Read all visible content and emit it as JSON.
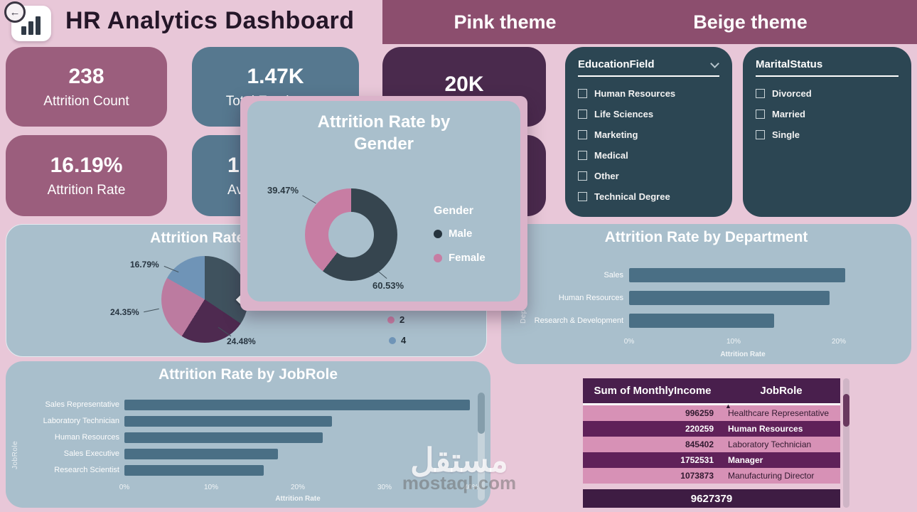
{
  "palette": {
    "page_bg": "#e8c7d8",
    "theme_strip": "#8c4e6e",
    "kpi_mauve": "#9b5e7d",
    "kpi_slate": "#56788f",
    "kpi_purple": "#4a2a4d",
    "filter_panel": "#2c4653",
    "chart_card": "#a9bfcc",
    "bar_fill": "#4a6f85",
    "donut_dark": "#36454f",
    "donut_pink": "#c77da3",
    "pie_blue": "#6f94b7",
    "pie_purple": "#4e2a50",
    "pie_mauve": "#bc7ba0",
    "table_header": "#491f4d",
    "table_row_pink": "#d791b6",
    "table_row_dark": "#5f2159"
  },
  "icons": {
    "back_arrow": "←",
    "sort_asc": "▲"
  },
  "header": {
    "title": "HR Analytics Dashboard",
    "theme_pink": "Pink theme",
    "theme_beige": "Beige theme"
  },
  "kpis": {
    "attrition_count": {
      "value": "238",
      "label": "Attrition Count"
    },
    "total_employees": {
      "value": "1.47K",
      "label": "Total Employees"
    },
    "value_20k": {
      "value": "20K",
      "label": ""
    },
    "attrition_rate": {
      "value": "16.19%",
      "label": "Attrition Rate"
    },
    "avg_partial": {
      "value": "1",
      "label": "Avg"
    },
    "hidden_card": {
      "value": "",
      "label": ""
    }
  },
  "filters": {
    "education": {
      "title": "EducationField",
      "options": [
        "Human Resources",
        "Life Sciences",
        "Marketing",
        "Medical",
        "Other",
        "Technical Degree"
      ]
    },
    "marital": {
      "title": "MaritalStatus",
      "options": [
        "Divorced",
        "Married",
        "Single"
      ]
    }
  },
  "education_chart": {
    "type": "pie",
    "title": "Attrition Rate by Education",
    "slice_labels": [
      "16.79%",
      "24.35%",
      "24.48%"
    ],
    "visible_values": [
      16.79,
      24.35,
      24.48
    ],
    "legend_visible": [
      "2",
      "4"
    ]
  },
  "gender_chart": {
    "type": "donut",
    "title_line1": "Attrition Rate by",
    "title_line2": "Gender",
    "legend_title": "Gender",
    "male_label": "Male",
    "female_label": "Female",
    "male_pct": "60.53%",
    "female_pct": "39.47%",
    "male_value": 60.53,
    "female_value": 39.47
  },
  "department_chart": {
    "type": "bar",
    "title": "Attrition Rate by Department",
    "ylabel": "Department",
    "xlabel": "Attrition Rate",
    "categories": [
      "Sales",
      "Human Resources",
      "Research & Development"
    ],
    "values": [
      20.6,
      19.1,
      13.8
    ],
    "ticks": [
      "0%",
      "10%",
      "20%"
    ],
    "xlim": [
      0,
      22
    ]
  },
  "jobrole_chart": {
    "type": "bar",
    "title": "Attrition Rate by JobRole",
    "ylabel": "JobRole",
    "xlabel": "Attrition Rate",
    "categories": [
      "Sales Representative",
      "Laboratory Technician",
      "Human Resources",
      "Sales Executive",
      "Research Scientist"
    ],
    "values": [
      39.8,
      23.9,
      22.9,
      17.7,
      16.1
    ],
    "ticks": [
      "0%",
      "10%",
      "20%",
      "30%",
      "40%"
    ],
    "xlim": [
      0,
      41
    ]
  },
  "income_table": {
    "type": "table",
    "headers": [
      "Sum of MonthlyIncome",
      "JobRole"
    ],
    "rows": [
      [
        "996259",
        "Healthcare Representative"
      ],
      [
        "220259",
        "Human Resources"
      ],
      [
        "845402",
        "Laboratory Technician"
      ],
      [
        "1752531",
        "Manager"
      ],
      [
        "1073873",
        "Manufacturing Director"
      ]
    ],
    "total": "9627379"
  },
  "watermark": {
    "arabic": "مستقل",
    "latin": "mostaql.com"
  }
}
